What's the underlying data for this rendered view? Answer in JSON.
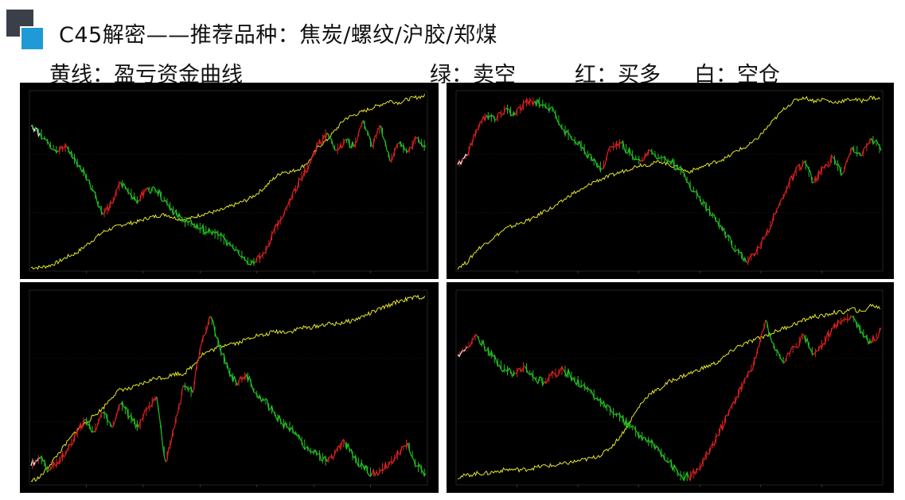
{
  "slide": {
    "title": "C45解密——推荐品种：焦炭/螺纹/沪胶/郑煤",
    "legend": {
      "yellow": "黄线：盈亏资金曲线",
      "green": "绿：卖空",
      "red": "红：买多",
      "white": "白：空仓"
    }
  },
  "colors": {
    "equity": "#e5e52a",
    "short": "#22c322",
    "long": "#e02020",
    "flat": "#f2f2f2",
    "panel_bg": "#000000",
    "logo_dark": "#3b3f4a",
    "logo_blue": "#1f9ad6"
  },
  "chart_data": [
    {
      "type": "line",
      "panel": "top-left",
      "series": [
        {
          "role": "price",
          "values": [
            0.82,
            0.78,
            0.72,
            0.68,
            0.7,
            0.62,
            0.55,
            0.45,
            0.32,
            0.38,
            0.5,
            0.44,
            0.4,
            0.47,
            0.45,
            0.4,
            0.33,
            0.28,
            0.26,
            0.24,
            0.22,
            0.2,
            0.16,
            0.12,
            0.06,
            0.05,
            0.1,
            0.22,
            0.3,
            0.4,
            0.52,
            0.6,
            0.72,
            0.78,
            0.68,
            0.74,
            0.7,
            0.85,
            0.7,
            0.82,
            0.62,
            0.72,
            0.67,
            0.75,
            0.7
          ]
        },
        {
          "role": "equity",
          "values": [
            0.02,
            0.02,
            0.03,
            0.05,
            0.08,
            0.1,
            0.14,
            0.18,
            0.22,
            0.24,
            0.26,
            0.27,
            0.28,
            0.3,
            0.31,
            0.32,
            0.3,
            0.29,
            0.3,
            0.32,
            0.33,
            0.34,
            0.36,
            0.38,
            0.4,
            0.43,
            0.47,
            0.52,
            0.56,
            0.56,
            0.58,
            0.62,
            0.7,
            0.74,
            0.8,
            0.86,
            0.88,
            0.9,
            0.92,
            0.94,
            0.96,
            0.95,
            0.97,
            0.98,
            0.99
          ]
        }
      ]
    },
    {
      "type": "line",
      "panel": "top-right",
      "series": [
        {
          "role": "price",
          "values": [
            0.6,
            0.65,
            0.8,
            0.88,
            0.85,
            0.92,
            0.88,
            0.95,
            0.96,
            0.94,
            0.9,
            0.8,
            0.74,
            0.7,
            0.62,
            0.58,
            0.7,
            0.72,
            0.66,
            0.62,
            0.68,
            0.64,
            0.62,
            0.58,
            0.5,
            0.42,
            0.35,
            0.28,
            0.2,
            0.12,
            0.05,
            0.1,
            0.2,
            0.32,
            0.44,
            0.55,
            0.62,
            0.5,
            0.58,
            0.64,
            0.55,
            0.7,
            0.65,
            0.75,
            0.68
          ]
        },
        {
          "role": "equity",
          "values": [
            0.02,
            0.05,
            0.12,
            0.16,
            0.2,
            0.24,
            0.26,
            0.28,
            0.3,
            0.34,
            0.36,
            0.4,
            0.44,
            0.46,
            0.5,
            0.52,
            0.54,
            0.56,
            0.58,
            0.6,
            0.6,
            0.62,
            0.6,
            0.58,
            0.56,
            0.58,
            0.6,
            0.62,
            0.64,
            0.68,
            0.7,
            0.74,
            0.8,
            0.86,
            0.92,
            0.96,
            0.98,
            0.96,
            0.97,
            0.95,
            0.96,
            0.97,
            0.96,
            0.98,
            0.97
          ]
        }
      ]
    },
    {
      "type": "line",
      "panel": "bottom-left",
      "series": [
        {
          "role": "price",
          "values": [
            0.1,
            0.14,
            0.08,
            0.12,
            0.18,
            0.26,
            0.34,
            0.28,
            0.38,
            0.3,
            0.42,
            0.36,
            0.3,
            0.4,
            0.46,
            0.12,
            0.3,
            0.52,
            0.48,
            0.74,
            0.88,
            0.72,
            0.6,
            0.52,
            0.58,
            0.48,
            0.44,
            0.38,
            0.32,
            0.3,
            0.24,
            0.18,
            0.16,
            0.12,
            0.18,
            0.22,
            0.14,
            0.1,
            0.06,
            0.08,
            0.12,
            0.16,
            0.22,
            0.1,
            0.06
          ]
        },
        {
          "role": "equity",
          "values": [
            0.02,
            0.04,
            0.1,
            0.16,
            0.22,
            0.28,
            0.32,
            0.36,
            0.4,
            0.46,
            0.5,
            0.5,
            0.52,
            0.54,
            0.56,
            0.56,
            0.58,
            0.58,
            0.62,
            0.68,
            0.7,
            0.72,
            0.74,
            0.74,
            0.76,
            0.78,
            0.78,
            0.8,
            0.8,
            0.8,
            0.82,
            0.82,
            0.83,
            0.84,
            0.84,
            0.85,
            0.86,
            0.88,
            0.9,
            0.92,
            0.94,
            0.96,
            0.97,
            0.98,
            0.98
          ]
        }
      ]
    },
    {
      "type": "line",
      "panel": "bottom-right",
      "series": [
        {
          "role": "price",
          "values": [
            0.68,
            0.72,
            0.78,
            0.7,
            0.65,
            0.6,
            0.58,
            0.62,
            0.56,
            0.54,
            0.58,
            0.6,
            0.56,
            0.52,
            0.48,
            0.42,
            0.38,
            0.35,
            0.3,
            0.26,
            0.22,
            0.18,
            0.12,
            0.05,
            0.04,
            0.08,
            0.16,
            0.26,
            0.36,
            0.46,
            0.56,
            0.66,
            0.86,
            0.7,
            0.64,
            0.72,
            0.78,
            0.68,
            0.74,
            0.82,
            0.86,
            0.88,
            0.8,
            0.74,
            0.82
          ]
        },
        {
          "role": "equity",
          "values": [
            0.04,
            0.05,
            0.06,
            0.06,
            0.07,
            0.08,
            0.08,
            0.08,
            0.09,
            0.1,
            0.1,
            0.11,
            0.12,
            0.13,
            0.14,
            0.16,
            0.2,
            0.26,
            0.34,
            0.42,
            0.48,
            0.5,
            0.54,
            0.56,
            0.58,
            0.6,
            0.62,
            0.64,
            0.68,
            0.72,
            0.74,
            0.76,
            0.78,
            0.8,
            0.82,
            0.84,
            0.86,
            0.88,
            0.88,
            0.9,
            0.9,
            0.92,
            0.9,
            0.94,
            0.92
          ]
        }
      ]
    }
  ]
}
